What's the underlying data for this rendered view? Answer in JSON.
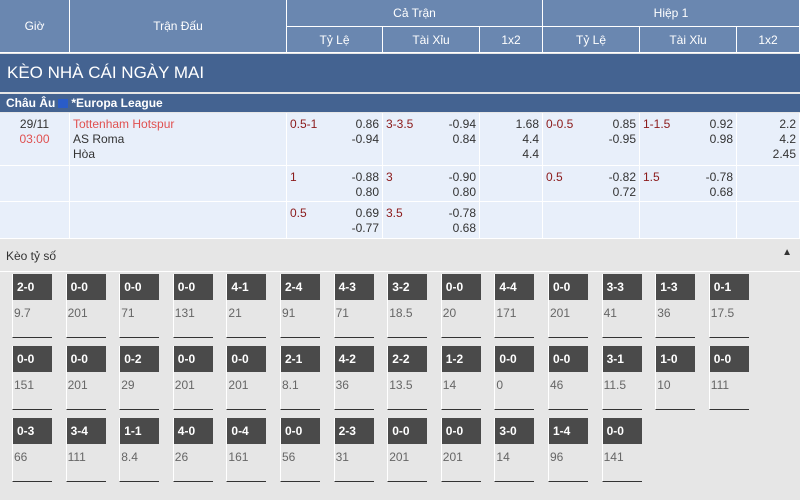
{
  "header": {
    "gio": "Giờ",
    "tran_dau": "Trận Đấu",
    "ca_tran": "Cả Trận",
    "hiep1": "Hiệp 1",
    "ty_le": "Tỷ Lệ",
    "tai_xiu": "Tài Xỉu",
    "x12": "1x2"
  },
  "banner": "KÈO NHÀ CÁI NGÀY MAI",
  "league": {
    "region": "Châu Âu",
    "name": "*Europa League"
  },
  "match": {
    "date": "29/11",
    "time": "03:00",
    "home": "Tottenham Hotspur",
    "away": "AS Roma",
    "draw": "Hòa"
  },
  "rows": [
    {
      "ft_hdp": "0.5-1",
      "ft_hdp_v": [
        "0.86",
        "-0.94"
      ],
      "ft_ou": "3-3.5",
      "ft_ou_v": [
        "-0.94",
        "0.84"
      ],
      "ft_1x2": [
        "1.68",
        "4.4",
        "4.4"
      ],
      "h1_hdp": "0-0.5",
      "h1_hdp_v": [
        "0.85",
        "-0.95"
      ],
      "h1_ou": "1-1.5",
      "h1_ou_v": [
        "0.92",
        "0.98"
      ],
      "h1_1x2": [
        "2.2",
        "4.2",
        "2.45"
      ]
    },
    {
      "ft_hdp": "1",
      "ft_hdp_v": [
        "-0.88",
        "0.80"
      ],
      "ft_ou": "3",
      "ft_ou_v": [
        "-0.90",
        "0.80"
      ],
      "ft_1x2": [],
      "h1_hdp": "0.5",
      "h1_hdp_v": [
        "-0.82",
        "0.72"
      ],
      "h1_ou": "1.5",
      "h1_ou_v": [
        "-0.78",
        "0.68"
      ],
      "h1_1x2": []
    },
    {
      "ft_hdp": "0.5",
      "ft_hdp_v": [
        "0.69",
        "-0.77"
      ],
      "ft_ou": "3.5",
      "ft_ou_v": [
        "-0.78",
        "0.68"
      ],
      "ft_1x2": [],
      "h1_hdp": "",
      "h1_hdp_v": [],
      "h1_ou": "",
      "h1_ou_v": [],
      "h1_1x2": []
    }
  ],
  "correct_score": {
    "title": "Kèo tỷ số",
    "items": [
      [
        "2-0",
        "9.7"
      ],
      [
        "0-0",
        "201"
      ],
      [
        "0-0",
        "71"
      ],
      [
        "0-0",
        "131"
      ],
      [
        "4-1",
        "21"
      ],
      [
        "2-4",
        "91"
      ],
      [
        "4-3",
        "71"
      ],
      [
        "3-2",
        "18.5"
      ],
      [
        "0-0",
        "20"
      ],
      [
        "4-4",
        "171"
      ],
      [
        "0-0",
        "201"
      ],
      [
        "3-3",
        "41"
      ],
      [
        "1-3",
        "36"
      ],
      [
        "0-1",
        "17.5"
      ],
      [
        "0-0",
        "151"
      ],
      [
        "0-0",
        "201"
      ],
      [
        "0-2",
        "29"
      ],
      [
        "0-0",
        "201"
      ],
      [
        "0-0",
        "201"
      ],
      [
        "2-1",
        "8.1"
      ],
      [
        "4-2",
        "36"
      ],
      [
        "2-2",
        "13.5"
      ],
      [
        "1-2",
        "14"
      ],
      [
        "0-0",
        "0"
      ],
      [
        "0-0",
        "46"
      ],
      [
        "3-1",
        "11.5"
      ],
      [
        "1-0",
        "10"
      ],
      [
        "0-0",
        "111"
      ],
      [
        "0-3",
        "66"
      ],
      [
        "3-4",
        "111"
      ],
      [
        "1-1",
        "8.4"
      ],
      [
        "4-0",
        "26"
      ],
      [
        "0-4",
        "161"
      ],
      [
        "0-0",
        "56"
      ],
      [
        "2-3",
        "31"
      ],
      [
        "0-0",
        "201"
      ],
      [
        "0-0",
        "201"
      ],
      [
        "3-0",
        "14"
      ],
      [
        "1-4",
        "96"
      ],
      [
        "0-0",
        "141"
      ]
    ]
  },
  "colors": {
    "header": "#6a87b0",
    "banner": "#446391",
    "row": "#e8effa",
    "handicap": "#8b1a1a",
    "home": "#e05050",
    "score_box": "#4a4a4a"
  }
}
